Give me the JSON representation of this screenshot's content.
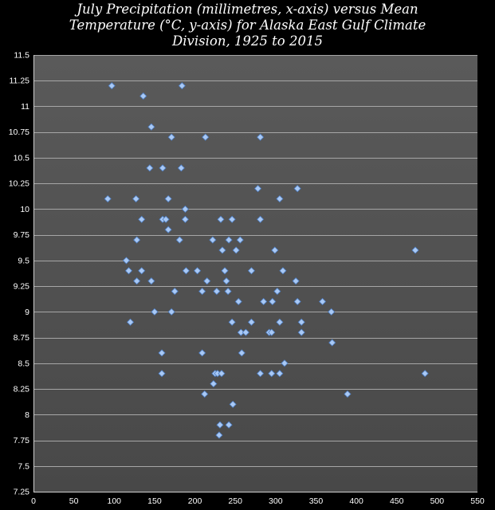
{
  "chart_data": {
    "type": "scatter",
    "title_lines": [
      "July Precipitation (millimetres, x-axis) versus Mean",
      "Temperature (°C, y-axis) for Alaska East Gulf Climate",
      "Division, 1925 to 2015"
    ],
    "xlabel": "",
    "ylabel": "",
    "xlim": [
      0,
      550
    ],
    "ylim": [
      7.25,
      11.5
    ],
    "x_ticks": [
      "0",
      "50",
      "100",
      "150",
      "200",
      "250",
      "300",
      "350",
      "400",
      "450",
      "500",
      "550"
    ],
    "y_ticks": [
      "7.25",
      "7.5",
      "7.75",
      "8",
      "8.25",
      "8.5",
      "8.75",
      "9",
      "9.25",
      "9.5",
      "9.75",
      "10",
      "10.25",
      "10.5",
      "10.75",
      "11",
      "11.25",
      "11.5"
    ],
    "grid": true,
    "legend": "none",
    "colors": {
      "background": "#000000",
      "plot_top": "#5a5a5a",
      "plot_bottom": "#484848",
      "marker_fill": "#a9c9f5",
      "marker_edge": "#4f7fc4",
      "grid": "#a6a6a6",
      "text": "#ffffff"
    },
    "points": [
      [
        97,
        11.2
      ],
      [
        184,
        11.2
      ],
      [
        136,
        11.1
      ],
      [
        146,
        10.8
      ],
      [
        171,
        10.7
      ],
      [
        213,
        10.7
      ],
      [
        281,
        10.7
      ],
      [
        144,
        10.4
      ],
      [
        160,
        10.4
      ],
      [
        183,
        10.4
      ],
      [
        278,
        10.2
      ],
      [
        327,
        10.2
      ],
      [
        92,
        10.1
      ],
      [
        127,
        10.1
      ],
      [
        167,
        10.1
      ],
      [
        305,
        10.1
      ],
      [
        188,
        10.0
      ],
      [
        134,
        9.9
      ],
      [
        160,
        9.9
      ],
      [
        164,
        9.9
      ],
      [
        188,
        9.9
      ],
      [
        232,
        9.9
      ],
      [
        246,
        9.9
      ],
      [
        281,
        9.9
      ],
      [
        167,
        9.8
      ],
      [
        128,
        9.7
      ],
      [
        181,
        9.7
      ],
      [
        222,
        9.7
      ],
      [
        242,
        9.7
      ],
      [
        256,
        9.7
      ],
      [
        234,
        9.6
      ],
      [
        251,
        9.6
      ],
      [
        299,
        9.6
      ],
      [
        473,
        9.6
      ],
      [
        115,
        9.5
      ],
      [
        118,
        9.4
      ],
      [
        134,
        9.4
      ],
      [
        189,
        9.4
      ],
      [
        203,
        9.4
      ],
      [
        237,
        9.4
      ],
      [
        270,
        9.4
      ],
      [
        309,
        9.4
      ],
      [
        128,
        9.3
      ],
      [
        146,
        9.3
      ],
      [
        215,
        9.3
      ],
      [
        239,
        9.3
      ],
      [
        325,
        9.3
      ],
      [
        175,
        9.2
      ],
      [
        209,
        9.2
      ],
      [
        227,
        9.2
      ],
      [
        241,
        9.2
      ],
      [
        302,
        9.2
      ],
      [
        254,
        9.1
      ],
      [
        285,
        9.1
      ],
      [
        296,
        9.1
      ],
      [
        327,
        9.1
      ],
      [
        358,
        9.1
      ],
      [
        150,
        9.0
      ],
      [
        171,
        9.0
      ],
      [
        369,
        9.0
      ],
      [
        120,
        8.9
      ],
      [
        246,
        8.9
      ],
      [
        270,
        8.9
      ],
      [
        305,
        8.9
      ],
      [
        332,
        8.9
      ],
      [
        257,
        8.8
      ],
      [
        263,
        8.8
      ],
      [
        292,
        8.8
      ],
      [
        295,
        8.8
      ],
      [
        332,
        8.8
      ],
      [
        370,
        8.7
      ],
      [
        159,
        8.6
      ],
      [
        209,
        8.6
      ],
      [
        258,
        8.6
      ],
      [
        311,
        8.5
      ],
      [
        223,
        8.3
      ],
      [
        159,
        8.4
      ],
      [
        225,
        8.4
      ],
      [
        228,
        8.4
      ],
      [
        233,
        8.4
      ],
      [
        281,
        8.4
      ],
      [
        295,
        8.4
      ],
      [
        305,
        8.4
      ],
      [
        485,
        8.4
      ],
      [
        212,
        8.2
      ],
      [
        389,
        8.2
      ],
      [
        247,
        8.1
      ],
      [
        231,
        7.9
      ],
      [
        242,
        7.9
      ],
      [
        230,
        7.8
      ]
    ]
  }
}
